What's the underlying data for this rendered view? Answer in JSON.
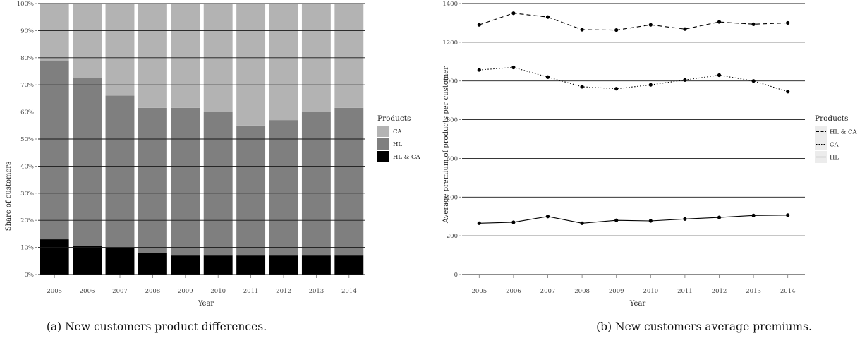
{
  "chart_data": [
    {
      "type": "bar",
      "stacked": true,
      "caption": "(a) New customers product differences.",
      "xlabel": "Year",
      "ylabel": "Share of customers",
      "ylim": [
        0,
        100
      ],
      "yticks": [
        "0%",
        "10%",
        "20%",
        "30%",
        "40%",
        "50%",
        "60%",
        "70%",
        "80%",
        "90%",
        "100%"
      ],
      "categories": [
        "2005",
        "2006",
        "2007",
        "2008",
        "2009",
        "2010",
        "2011",
        "2012",
        "2013",
        "2014"
      ],
      "legend_title": "Products",
      "legend_position": "right",
      "grid": true,
      "series": [
        {
          "name": "CA",
          "color": "#b3b3b3",
          "values": [
            21,
            27.5,
            34,
            38.5,
            38.5,
            40,
            45,
            43,
            40,
            38.5
          ]
        },
        {
          "name": "HL",
          "color": "#7f7f7f",
          "values": [
            66,
            62,
            56,
            53.5,
            54.5,
            53,
            48,
            50,
            53,
            54.5
          ]
        },
        {
          "name": "HL & CA",
          "color": "#000000",
          "values": [
            13,
            10.5,
            10,
            8,
            7,
            7,
            7,
            7,
            7,
            7
          ]
        }
      ]
    },
    {
      "type": "line",
      "caption": "(b) New customers average premiums.",
      "xlabel": "Year",
      "ylabel": "Average premium of products per customer",
      "ylim": [
        0,
        1400
      ],
      "yticks": [
        "0",
        "200",
        "400",
        "600",
        "800",
        "1000",
        "1200",
        "1400"
      ],
      "x": [
        "2005",
        "2006",
        "2007",
        "2008",
        "2009",
        "2010",
        "2011",
        "2012",
        "2013",
        "2014"
      ],
      "legend_title": "Products",
      "legend_position": "right",
      "grid": true,
      "series": [
        {
          "name": "HL & CA",
          "dash": "dashed",
          "values": [
            1290,
            1350,
            1330,
            1265,
            1263,
            1290,
            1268,
            1305,
            1293,
            1300
          ]
        },
        {
          "name": "CA",
          "dash": "dotted",
          "values": [
            1057,
            1070,
            1020,
            970,
            960,
            980,
            1005,
            1030,
            1000,
            945
          ]
        },
        {
          "name": "HL",
          "dash": "solid",
          "values": [
            265,
            270,
            300,
            265,
            280,
            277,
            287,
            295,
            305,
            307
          ]
        }
      ]
    }
  ]
}
